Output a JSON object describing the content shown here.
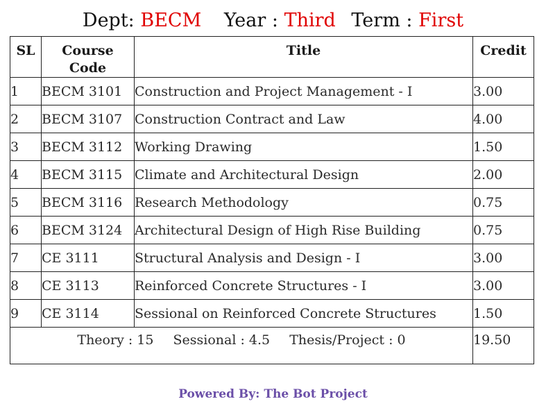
{
  "header": {
    "dept_label": "Dept:",
    "dept_value": "BECM",
    "year_label": "Year :",
    "year_value": "Third",
    "term_label": "Term :",
    "term_value": "First"
  },
  "table": {
    "columns": {
      "sl": "SL",
      "code_line1": "Course",
      "code_line2": "Code",
      "title": "Title",
      "credit": "Credit"
    },
    "rows": [
      {
        "sl": "1",
        "code": "BECM 3101",
        "title": "Construction and Project Management - I",
        "credit": "3.00"
      },
      {
        "sl": "2",
        "code": "BECM 3107",
        "title": "Construction Contract and Law",
        "credit": "4.00"
      },
      {
        "sl": "3",
        "code": "BECM 3112",
        "title": "Working Drawing",
        "credit": "1.50"
      },
      {
        "sl": "4",
        "code": "BECM 3115",
        "title": "Climate and Architectural Design",
        "credit": "2.00"
      },
      {
        "sl": "5",
        "code": "BECM 3116",
        "title": "Research Methodology",
        "credit": "0.75"
      },
      {
        "sl": "6",
        "code": "BECM 3124",
        "title": "Architectural Design of High Rise Building",
        "credit": "0.75"
      },
      {
        "sl": "7",
        "code": "CE 3111",
        "title": "Structural Analysis and Design - I",
        "credit": "3.00"
      },
      {
        "sl": "8",
        "code": "CE 3113",
        "title": "Reinforced Concrete Structures - I",
        "credit": "3.00"
      },
      {
        "sl": "9",
        "code": "CE 3114",
        "title": "Sessional on Reinforced Concrete Structures",
        "credit": "1.50"
      }
    ],
    "summary": {
      "theory": "Theory : 15",
      "sessional": "Sessional : 4.5",
      "thesis": "Thesis/Project : 0",
      "total_credit": "19.50"
    }
  },
  "footer": {
    "powered_by": "Powered By: The Bot Project"
  },
  "colors": {
    "accent_red": "#e00000",
    "footer_purple": "#6b4fa8"
  }
}
